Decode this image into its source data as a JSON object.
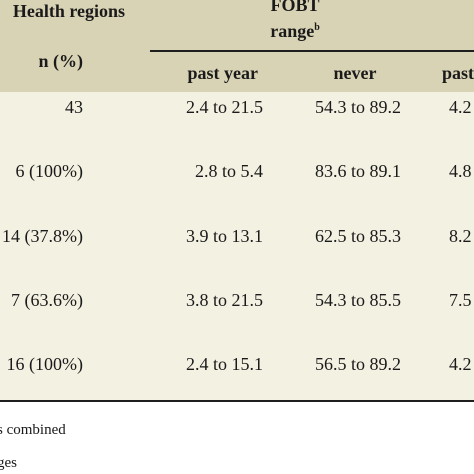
{
  "header": {
    "health_regions": "Health regions",
    "fobt": "FOBT",
    "range": "range",
    "range_sup": "b",
    "n_pct": "n (%)",
    "past_year": "past year",
    "never": "never",
    "past_partial": "past"
  },
  "rows": [
    {
      "n": "43",
      "past_year": "2.4 to 21.5",
      "never": "54.3 to 89.2",
      "past": "4.2"
    },
    {
      "n": "6 (100%)",
      "past_year": "2.8 to 5.4",
      "never": "83.6 to 89.1",
      "past": "4.8"
    },
    {
      "n": "14 (37.8%)",
      "past_year": "3.9 to 13.1",
      "never": "62.5 to 85.3",
      "past": "8.2"
    },
    {
      "n": "7 (63.6%)",
      "past_year": "3.8 to 21.5",
      "never": "54.3 to 85.5",
      "past": "7.5"
    },
    {
      "n": "16 (100%)",
      "past_year": "2.4 to 15.1",
      "never": "56.5 to 89.2",
      "past": "4.2"
    }
  ],
  "footnotes": {
    "line1": "s combined",
    "line2": "ges"
  },
  "colors": {
    "header_bg": "#d9d3b5",
    "body_bg": "#f3f1e2",
    "text": "#1a1a1a"
  }
}
